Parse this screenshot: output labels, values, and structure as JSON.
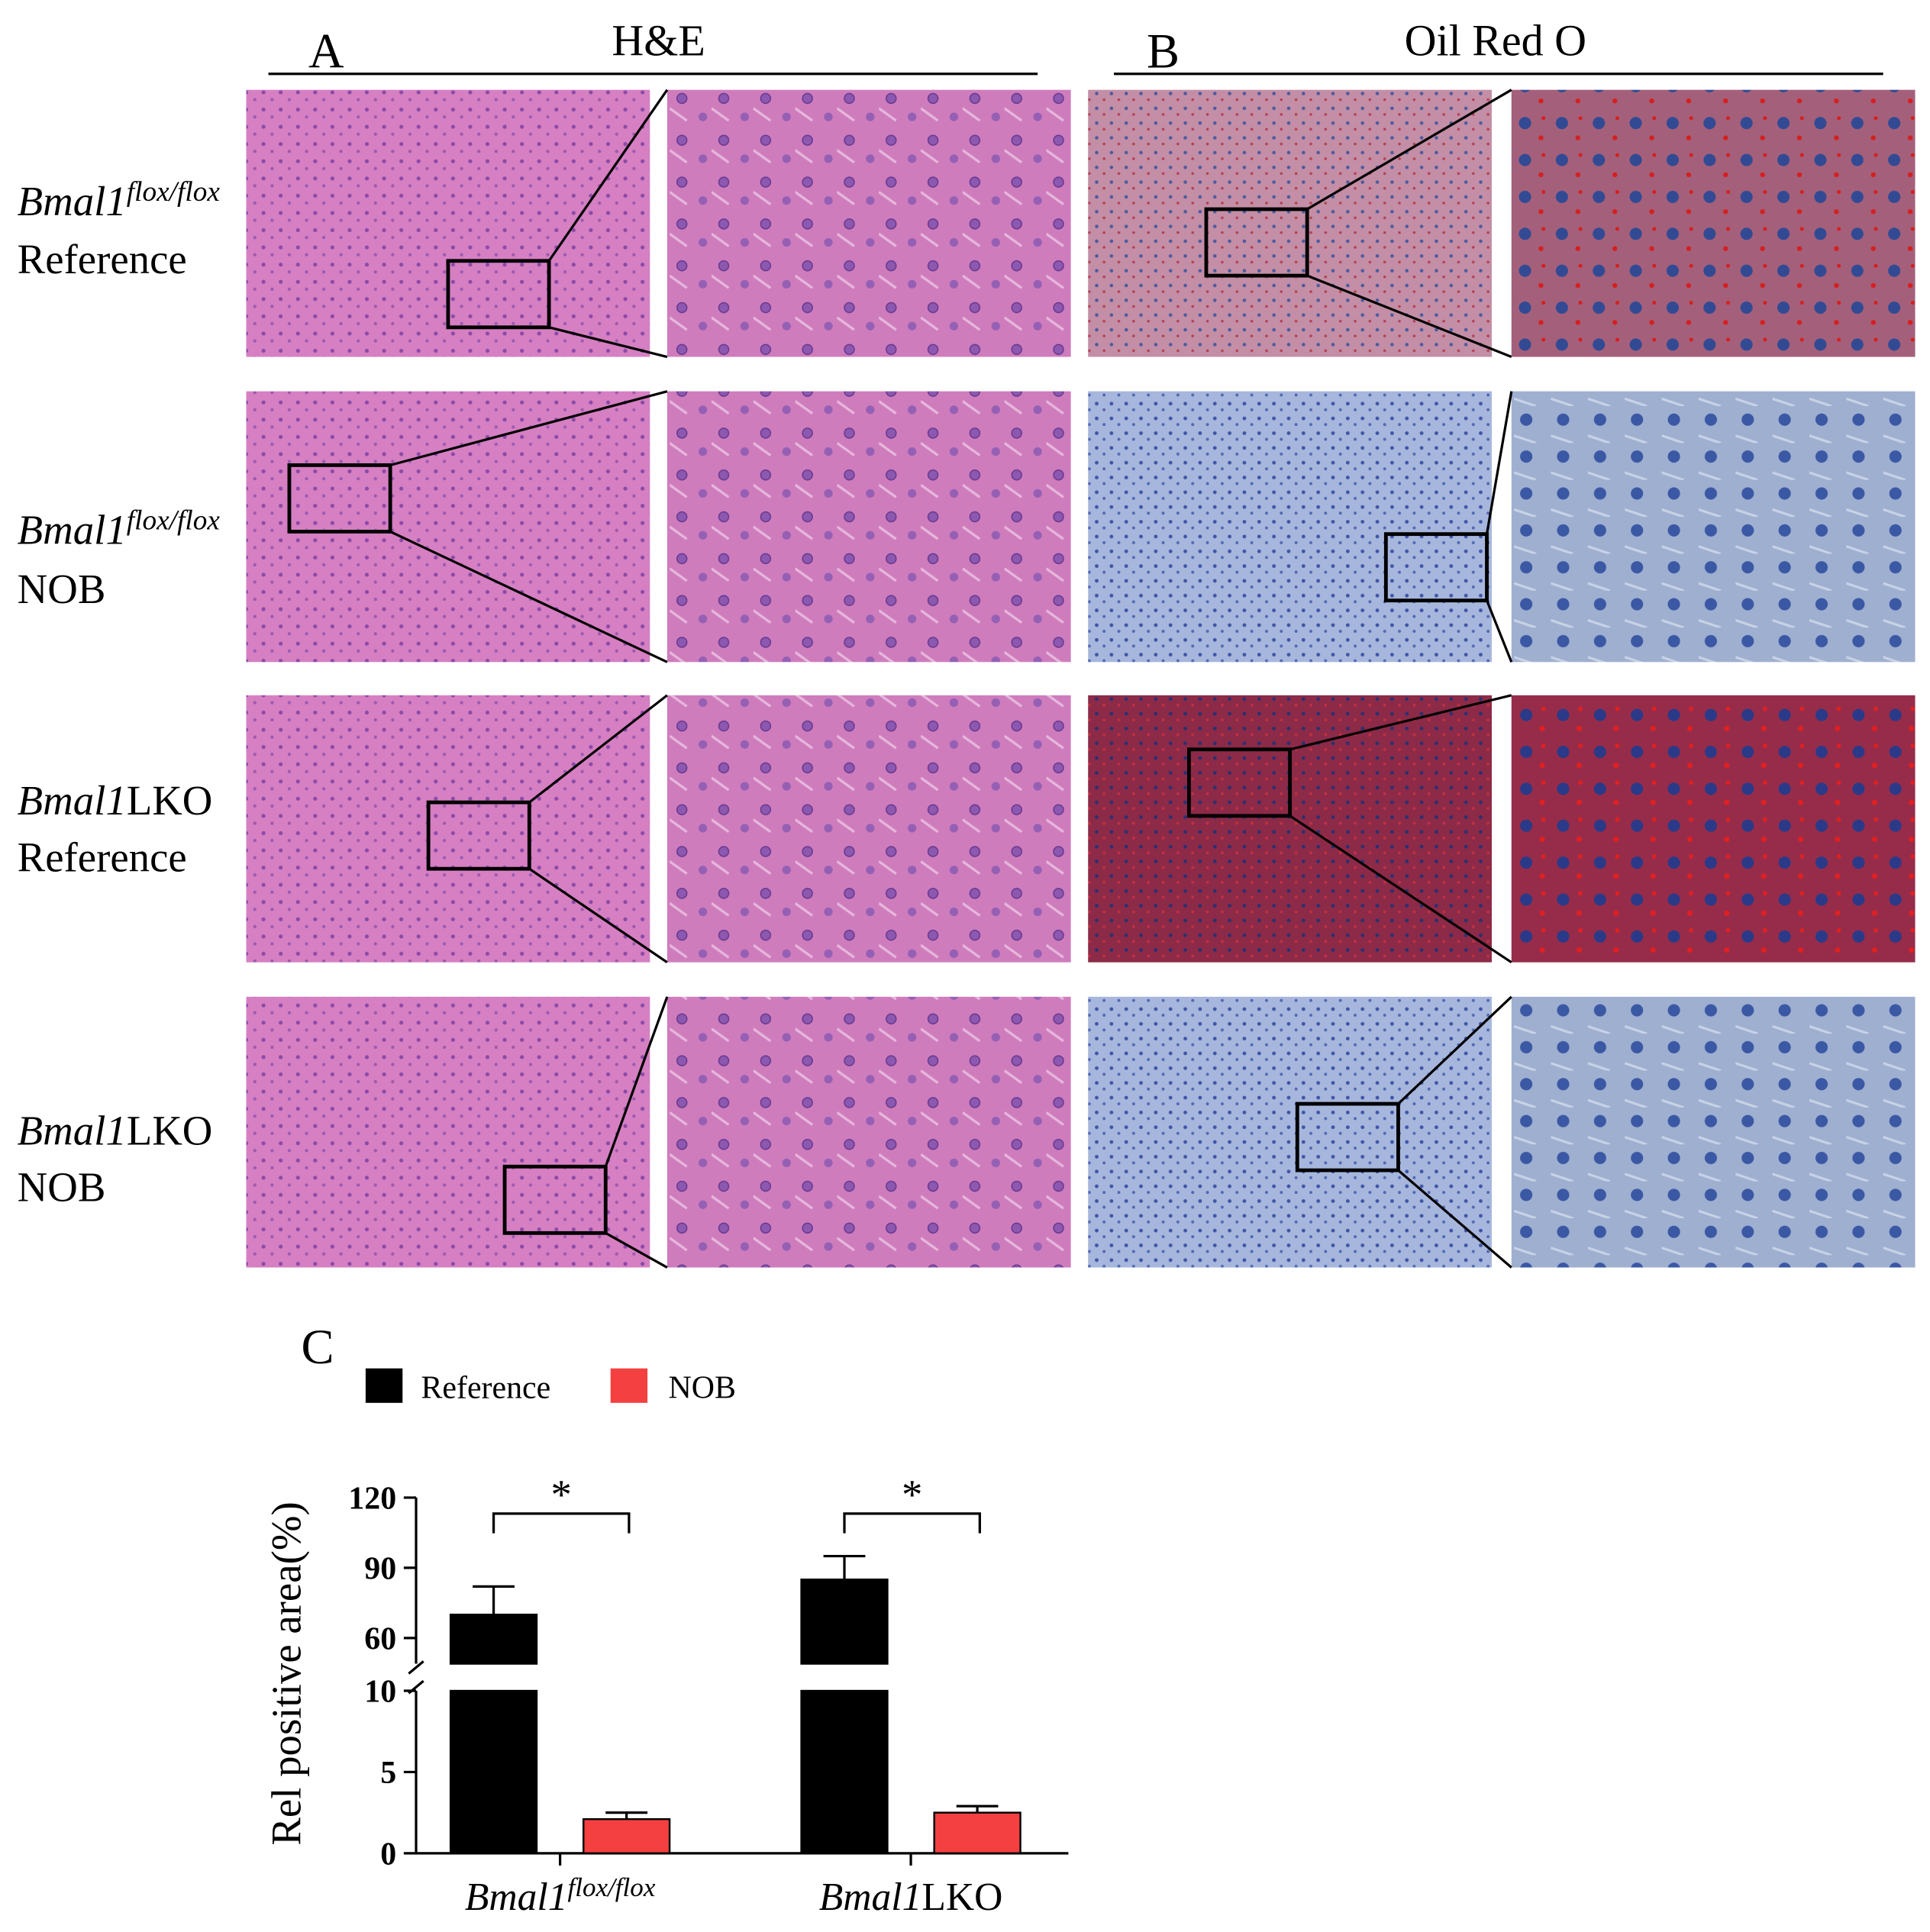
{
  "panels": [
    {
      "label": "A",
      "title": "H&E"
    },
    {
      "label": "B",
      "title": "Oil Red O"
    }
  ],
  "rows": [
    {
      "gene": "Bmal1",
      "superscript": "flox/flox",
      "treatment": "Reference"
    },
    {
      "gene": "Bmal1",
      "superscript": "flox/flox",
      "treatment": "NOB"
    },
    {
      "gene": "Bmal1",
      "suffix": "LKO",
      "treatment": "Reference"
    },
    {
      "gene": "Bmal1",
      "suffix": "LKO",
      "treatment": "NOB"
    }
  ],
  "chart_data": {
    "type": "bar",
    "panel_label": "C",
    "y_label": "Rel positive area(%)",
    "categories": [
      {
        "gene": "Bmal1",
        "superscript": "flox/flox"
      },
      {
        "gene": "Bmal1",
        "suffix": "LKO"
      }
    ],
    "series": [
      {
        "name": "Reference",
        "color": "#000000",
        "values": [
          70,
          85
        ],
        "errors": [
          12,
          10
        ]
      },
      {
        "name": "NOB",
        "color": "#f44040",
        "values": [
          2.1,
          2.5
        ],
        "errors": [
          0.4,
          0.4
        ]
      }
    ],
    "ylim": [
      0,
      120
    ],
    "y_break": [
      10,
      49
    ],
    "yticks": [
      0,
      5,
      10,
      60,
      90,
      120
    ],
    "annotations": [
      "*",
      "*"
    ]
  }
}
